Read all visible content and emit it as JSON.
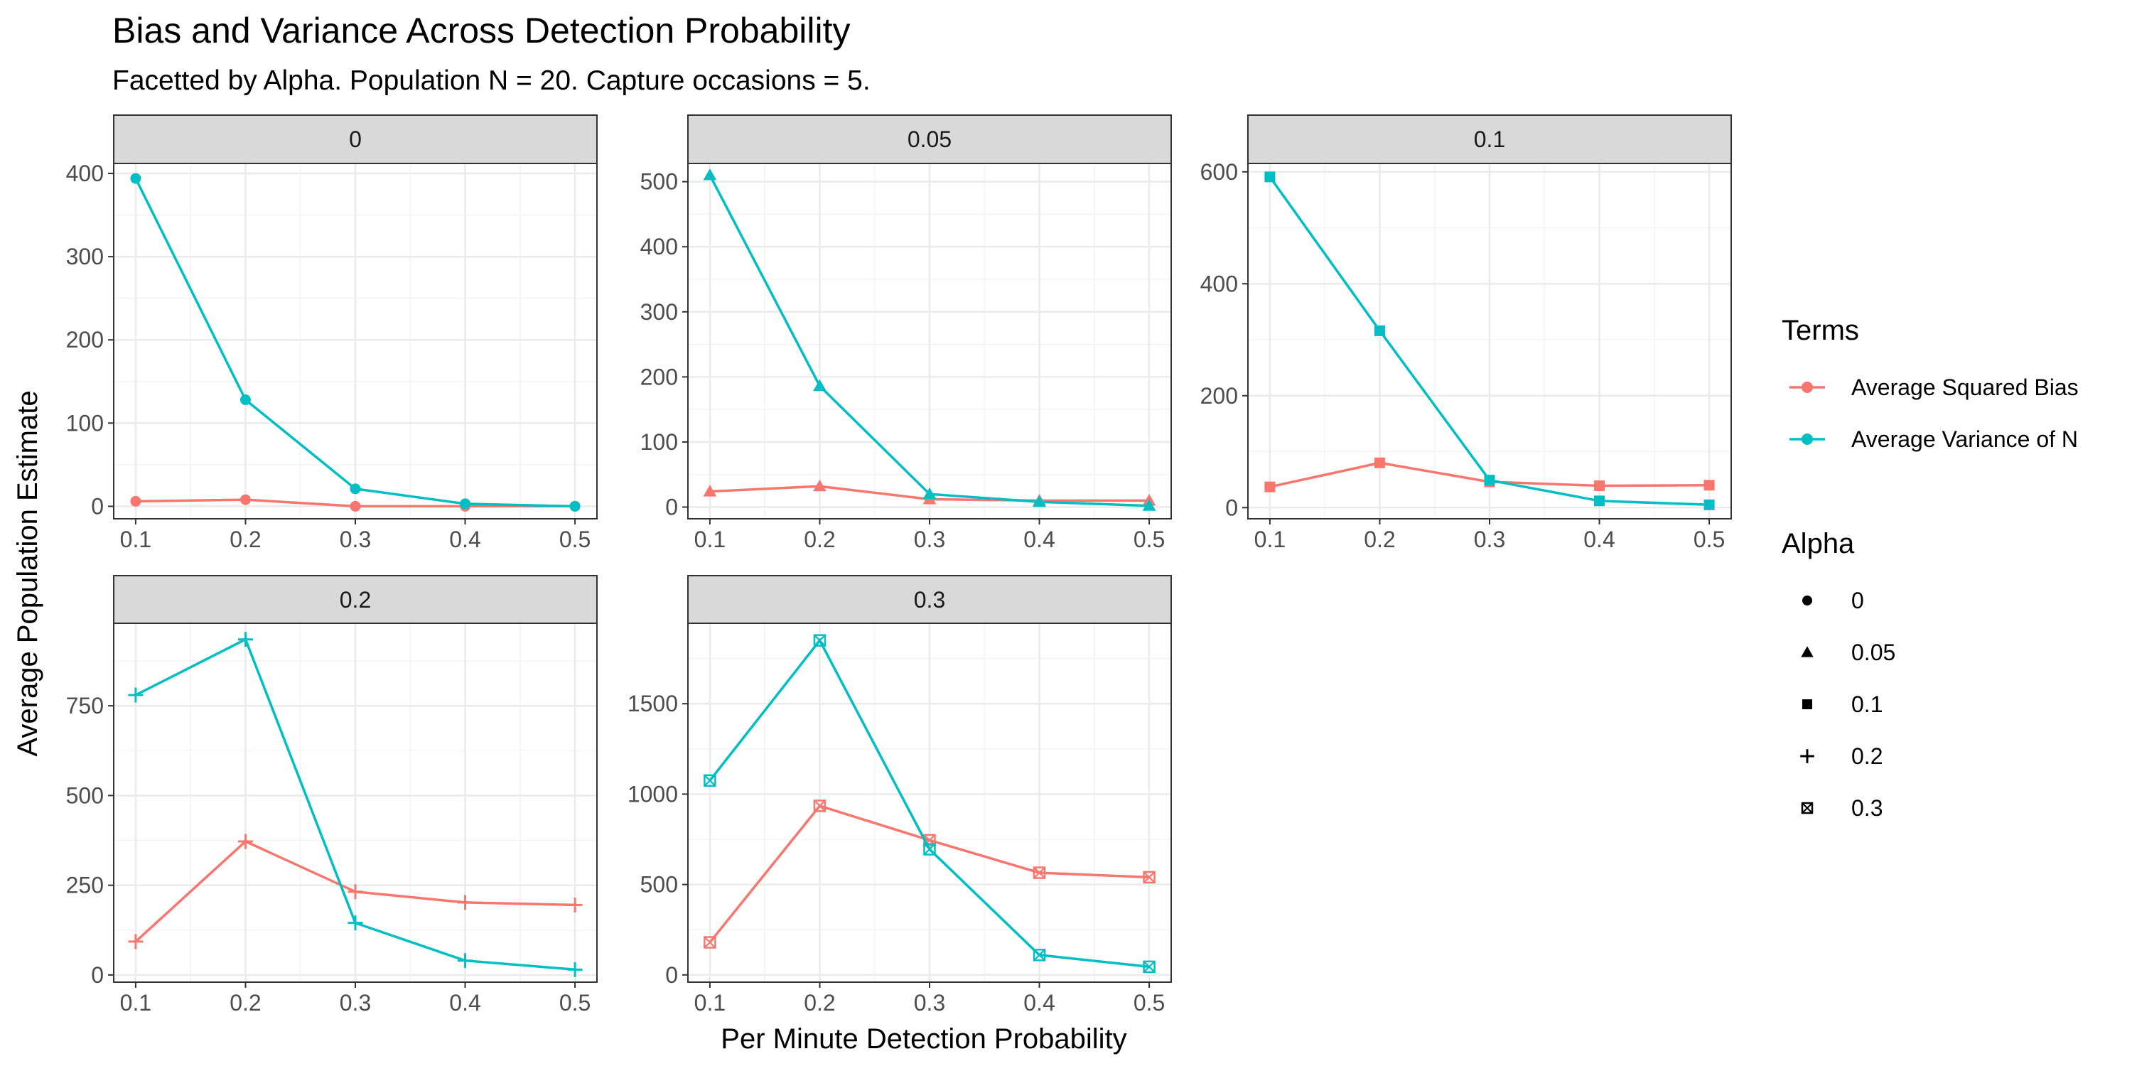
{
  "title": "Bias and Variance Across Detection Probability",
  "subtitle": "Facetted by Alpha. Population N = 20. Capture occasions = 5.",
  "chart_data": {
    "type": "line",
    "xlabel": "Per Minute Detection Probability",
    "ylabel": "Average Population Estimate",
    "x": [
      0.1,
      0.2,
      0.3,
      0.4,
      0.5
    ],
    "x_tick_labels": [
      "0.1",
      "0.2",
      "0.3",
      "0.4",
      "0.5"
    ],
    "xlim": [
      0.08,
      0.52
    ],
    "grid": true,
    "colors": {
      "bias": "#F8766D",
      "variance": "#00BFC4"
    },
    "legend": {
      "placement": "right",
      "terms_title": "Terms",
      "terms": [
        {
          "key": "bias",
          "label": "Average Squared Bias"
        },
        {
          "key": "variance",
          "label": "Average Variance of N"
        }
      ],
      "alpha_title": "Alpha",
      "alpha": [
        {
          "label": "0",
          "shape": "circle"
        },
        {
          "label": "0.05",
          "shape": "triangle"
        },
        {
          "label": "0.1",
          "shape": "square"
        },
        {
          "label": "0.2",
          "shape": "plus"
        },
        {
          "label": "0.3",
          "shape": "boxed-x"
        }
      ]
    },
    "facets": [
      {
        "label": "0",
        "shape": "circle",
        "ylim": [
          -15,
          412
        ],
        "y_ticks": [
          0,
          100,
          200,
          300,
          400
        ],
        "series": [
          {
            "name": "Average Squared Bias",
            "key": "bias",
            "values": [
              6,
              8,
              0,
              0,
              0
            ]
          },
          {
            "name": "Average Variance of N",
            "key": "variance",
            "values": [
              394,
              128,
              21,
              3,
              0
            ]
          }
        ]
      },
      {
        "label": "0.05",
        "shape": "triangle",
        "ylim": [
          -18,
          528
        ],
        "y_ticks": [
          0,
          100,
          200,
          300,
          400,
          500
        ],
        "series": [
          {
            "name": "Average Squared Bias",
            "key": "bias",
            "values": [
              24,
              32,
              12,
              10,
              10
            ]
          },
          {
            "name": "Average Variance of N",
            "key": "variance",
            "values": [
              510,
              186,
              20,
              8,
              2
            ]
          }
        ]
      },
      {
        "label": "0.1",
        "shape": "square",
        "ylim": [
          -20,
          615
        ],
        "y_ticks": [
          0,
          200,
          400,
          600
        ],
        "series": [
          {
            "name": "Average Squared Bias",
            "key": "bias",
            "values": [
              37,
              80,
              46,
              39,
              40
            ]
          },
          {
            "name": "Average Variance of N",
            "key": "variance",
            "values": [
              591,
              316,
              49,
              12,
              5
            ]
          }
        ]
      },
      {
        "label": "0.2",
        "shape": "plus",
        "ylim": [
          -20,
          980
        ],
        "y_ticks": [
          0,
          250,
          500,
          750
        ],
        "series": [
          {
            "name": "Average Squared Bias",
            "key": "bias",
            "values": [
              93,
              372,
              232,
              202,
              195
            ]
          },
          {
            "name": "Average Variance of N",
            "key": "variance",
            "values": [
              780,
              935,
              145,
              40,
              15
            ]
          }
        ]
      },
      {
        "label": "0.3",
        "shape": "boxed-x",
        "ylim": [
          -40,
          1945
        ],
        "y_ticks": [
          0,
          500,
          1000,
          1500
        ],
        "series": [
          {
            "name": "Average Squared Bias",
            "key": "bias",
            "values": [
              180,
              935,
              745,
              565,
              540
            ]
          },
          {
            "name": "Average Variance of N",
            "key": "variance",
            "values": [
              1075,
              1850,
              695,
              110,
              45
            ]
          }
        ]
      }
    ]
  }
}
